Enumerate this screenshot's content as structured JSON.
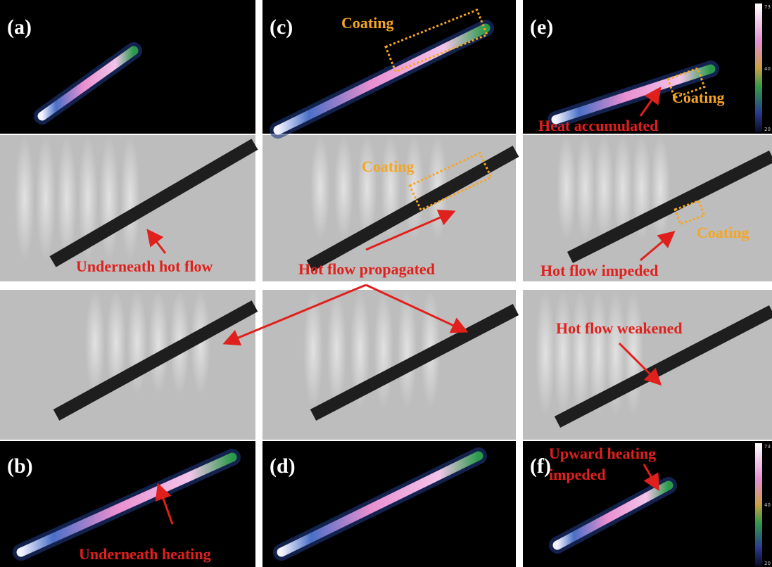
{
  "labels": [
    "(a)",
    "(b)",
    "(c)",
    "(d)",
    "(e)",
    "(f)"
  ],
  "annotations": [
    "Underneath hot flow",
    "Underneath heating",
    "Coating",
    "Coating",
    "Hot flow propagated",
    "Coating",
    "Heat accumulated",
    "Coating",
    "Hot flow impeded",
    "Hot flow weakened",
    "Upward heating",
    "impeded"
  ],
  "colorbar_ticks": [
    "73",
    "40",
    "20"
  ]
}
